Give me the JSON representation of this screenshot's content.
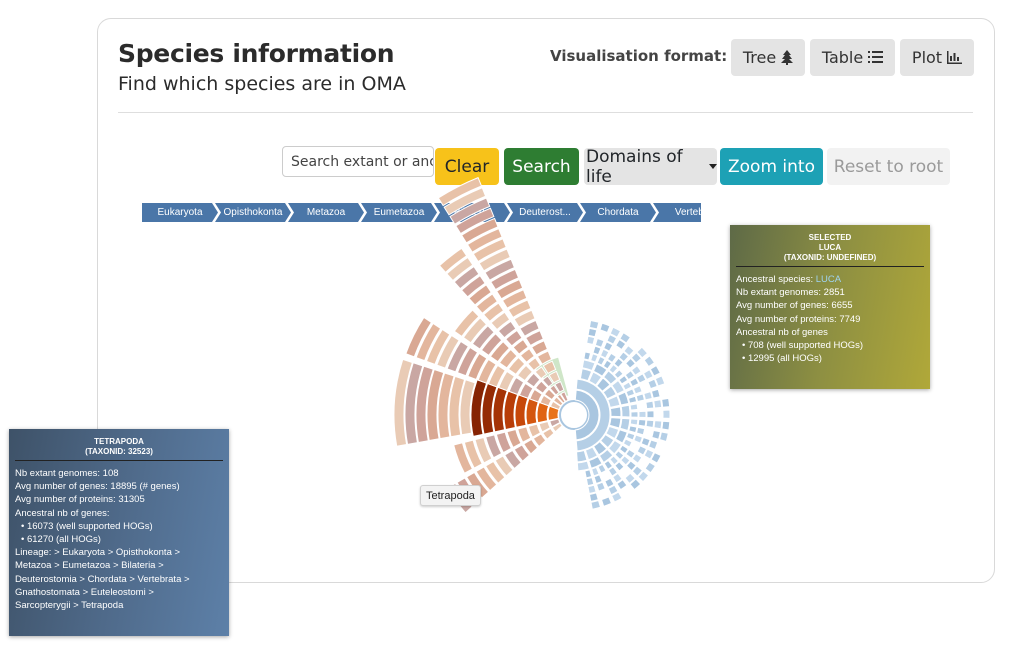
{
  "header": {
    "title": "Species information",
    "subtitle": "Find which species are in OMA",
    "format_label": "Visualisation format:",
    "formats": [
      {
        "label": "Tree",
        "icon": "tree-icon"
      },
      {
        "label": "Table",
        "icon": "list-icon"
      },
      {
        "label": "Plot",
        "icon": "bar-chart-icon"
      }
    ]
  },
  "controls": {
    "search_placeholder": "Search extant or anc",
    "clear_label": "Clear",
    "search_label": "Search",
    "domains_label": "Domains of life",
    "zoom_label": "Zoom into",
    "reset_label": "Reset to root"
  },
  "breadcrumb": [
    "Eukaryota",
    "Opisthokonta",
    "Metazoa",
    "Eumetazoa",
    "Bilateria",
    "Deuterost...",
    "Chordata",
    "Vertebr"
  ],
  "hover_label": "Tetrapoda",
  "selected_panel": {
    "heading1": "SELECTED",
    "heading2": "LUCA",
    "heading3": "(TAXONID: UNDEFINED)",
    "ancestral_label": "Ancestral species: ",
    "ancestral_value": "LUCA",
    "nb_extant": "Nb extant genomes: 2851",
    "avg_genes": "Avg number of genes: 6655",
    "avg_proteins": "Avg number of proteins: 7749",
    "ancestral_nb": "Ancestral nb of genes",
    "hogs_supported": "• 708 (well supported HOGs)",
    "hogs_all": "• 12995 (all HOGs)"
  },
  "tetrapoda_panel": {
    "heading1": "TETRAPODA",
    "heading2": "(TAXONID: 32523)",
    "nb_extant": "Nb extant genomes: 108",
    "avg_genes": "Avg number of genes: 18895 (# genes)",
    "avg_proteins": "Avg number of proteins: 31305",
    "ancestral_nb": "Ancestral nb of genes:",
    "hogs_supported": "• 16073 (well supported HOGs)",
    "hogs_all": "• 61270 (all HOGs)",
    "lineage": [
      "Lineage: > Eukaryota > Opisthokonta >",
      "Metazoa > Eumetazoa > Bilateria >",
      "Deuterostomia > Chordata > Vertebrata >",
      "Gnathostomata > Euteleostomi >",
      "Sarcopterygii > Tetrapoda"
    ]
  },
  "colors": {
    "clear": "#f7c21a",
    "search": "#2e7d32",
    "zoom": "#1da1b5",
    "breadcrumb": "#4a76a8",
    "eukaryota_highlight": "#e8731a",
    "bacteria": "#a9c6e0"
  }
}
